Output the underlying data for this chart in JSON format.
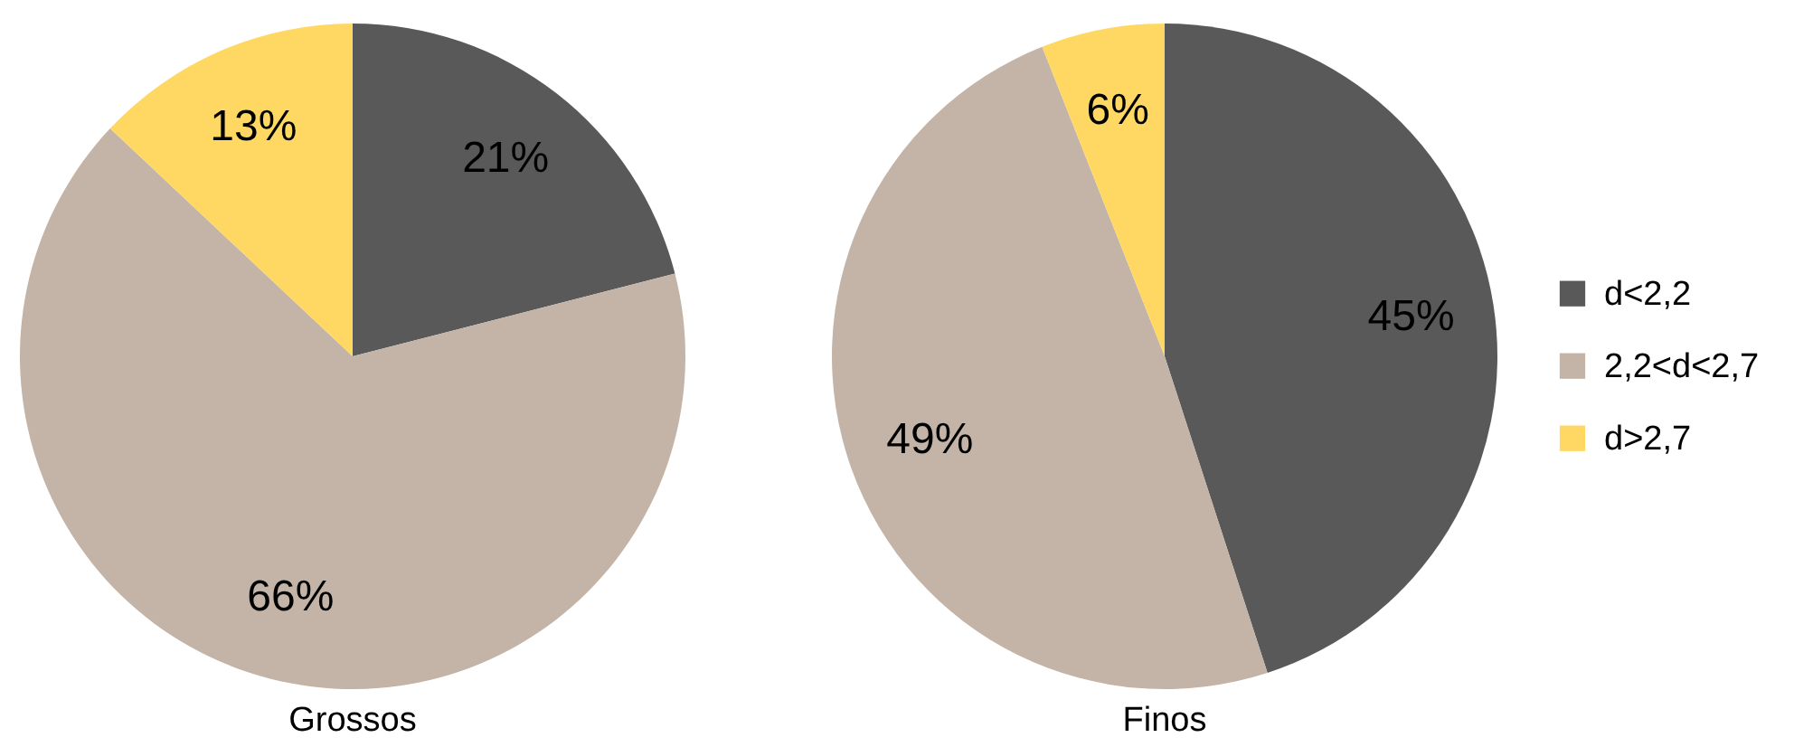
{
  "chart_data": [
    {
      "type": "pie",
      "title": "Grossos",
      "categories": [
        null,
        null,
        null
      ],
      "values": [
        21,
        66,
        13
      ],
      "colors": [
        "#595959",
        "#c3b4a7",
        "#fed862"
      ],
      "value_labels": [
        "21%",
        "66%",
        "13%"
      ],
      "legend": false
    },
    {
      "type": "pie",
      "title": "Finos",
      "categories": [
        "d<2,2",
        "2,2<d<2,7",
        "d>2,7"
      ],
      "values": [
        45,
        49,
        6
      ],
      "colors": [
        "#595959",
        "#c3b4a7",
        "#fed862"
      ],
      "value_labels": [
        "45%",
        "49%",
        "6%"
      ],
      "legend": "right"
    }
  ]
}
